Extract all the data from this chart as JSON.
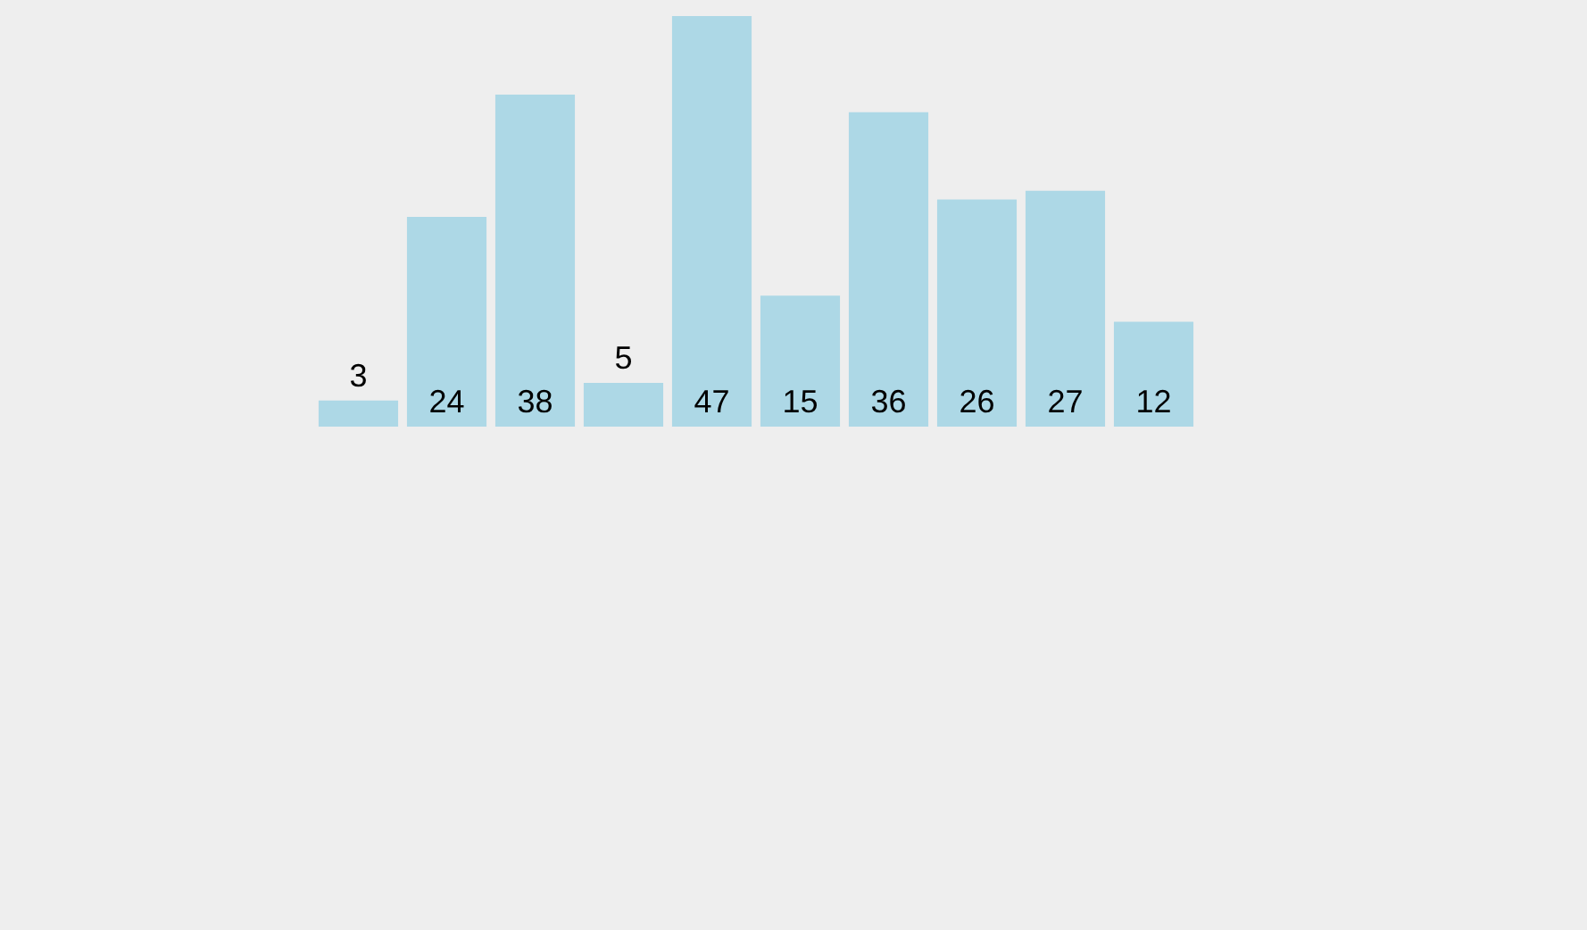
{
  "chart_data": {
    "type": "bar",
    "categories": [
      null,
      null,
      null,
      null,
      null,
      null,
      null,
      null,
      null,
      null
    ],
    "values": [
      3,
      24,
      38,
      5,
      47,
      15,
      36,
      26,
      27,
      12
    ],
    "color": "#add8e6",
    "data_labels": true,
    "legend": false
  }
}
